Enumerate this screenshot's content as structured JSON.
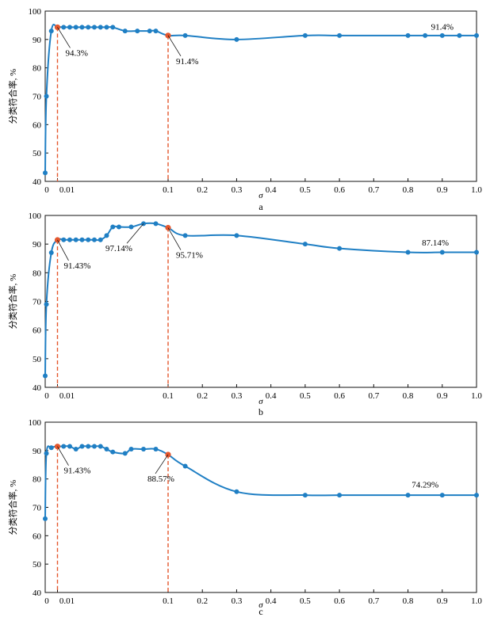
{
  "colors": {
    "line": "#1f7fc4",
    "marker": "#1f7fc4",
    "highlight": "#e4572e",
    "guide": "#e4572e",
    "axis": "#111111"
  },
  "chart_data": [
    {
      "type": "line",
      "panel": "a",
      "xlabel": "σ",
      "ylabel": "分类符合率, %",
      "ylim": [
        40,
        100
      ],
      "xlim": [
        0,
        1.0
      ],
      "y_ticks": [
        "40",
        "50",
        "60",
        "70",
        "80",
        "90",
        "100"
      ],
      "x_ticks": [
        "0",
        "0.01",
        "0.1",
        "0.2",
        "0.3",
        "0.4",
        "0.5",
        "0.6",
        "0.7",
        "0.8",
        "0.9",
        "1.0"
      ],
      "series": [
        {
          "name": "a",
          "x": [
            0,
            0.001,
            0.005,
            0.01,
            0.015,
            0.02,
            0.025,
            0.03,
            0.035,
            0.04,
            0.045,
            0.05,
            0.055,
            0.065,
            0.075,
            0.085,
            0.09,
            0.1,
            0.15,
            0.3,
            0.5,
            0.6,
            0.8,
            0.85,
            0.9,
            0.95,
            1.0
          ],
          "values": [
            43,
            70,
            93,
            94.3,
            94.3,
            94.3,
            94.3,
            94.3,
            94.3,
            94.3,
            94.3,
            94.3,
            94.3,
            93,
            93,
            93,
            93,
            91.4,
            91.4,
            90,
            91.4,
            91.4,
            91.4,
            91.4,
            91.4,
            91.4,
            91.4
          ]
        }
      ],
      "highlights": [
        {
          "x": 0.01,
          "y": 94.3,
          "label": "94.3%"
        },
        {
          "x": 0.1,
          "y": 91.4,
          "label": "91.4%"
        }
      ],
      "annotations": [
        {
          "text": "91.4%",
          "x": 0.9,
          "y": 93.5
        }
      ]
    },
    {
      "type": "line",
      "panel": "b",
      "xlabel": "σ",
      "ylabel": "分类符合率, %",
      "ylim": [
        40,
        100
      ],
      "xlim": [
        0,
        1.0
      ],
      "y_ticks": [
        "40",
        "50",
        "60",
        "70",
        "80",
        "90",
        "100"
      ],
      "x_ticks": [
        "0",
        "0.01",
        "0.1",
        "0.2",
        "0.3",
        "0.4",
        "0.5",
        "0.6",
        "0.7",
        "0.8",
        "0.9",
        "1.0"
      ],
      "series": [
        {
          "name": "b",
          "x": [
            0,
            0.001,
            0.005,
            0.01,
            0.015,
            0.02,
            0.025,
            0.03,
            0.035,
            0.04,
            0.045,
            0.05,
            0.055,
            0.06,
            0.07,
            0.08,
            0.09,
            0.1,
            0.15,
            0.3,
            0.5,
            0.6,
            0.8,
            0.9,
            1.0
          ],
          "values": [
            44,
            69,
            87,
            91.43,
            91.5,
            91.5,
            91.5,
            91.5,
            91.5,
            91.5,
            91.5,
            93,
            96,
            96,
            96,
            97.14,
            97.14,
            95.71,
            93,
            93,
            90,
            88.5,
            87.14,
            87.14,
            87.14
          ]
        }
      ],
      "highlights": [
        {
          "x": 0.01,
          "y": 91.43,
          "label": "91.43%"
        },
        {
          "x": 0.1,
          "y": 95.71,
          "label": "95.71%"
        }
      ],
      "annotations": [
        {
          "text": "97.14%",
          "x": 0.06,
          "y": 87.5
        },
        {
          "text": "87.14%",
          "x": 0.88,
          "y": 89.5
        }
      ]
    },
    {
      "type": "line",
      "panel": "c",
      "xlabel": "σ",
      "ylabel": "分类符合率, %",
      "ylim": [
        40,
        100
      ],
      "xlim": [
        0,
        1.0
      ],
      "y_ticks": [
        "40",
        "50",
        "60",
        "70",
        "80",
        "90",
        "100"
      ],
      "x_ticks": [
        "0",
        "0.01",
        "0.1",
        "0.2",
        "0.3",
        "0.4",
        "0.5",
        "0.6",
        "0.7",
        "0.8",
        "0.9",
        "1.0"
      ],
      "series": [
        {
          "name": "c",
          "x": [
            0,
            0.001,
            0.005,
            0.01,
            0.015,
            0.02,
            0.025,
            0.03,
            0.035,
            0.04,
            0.045,
            0.05,
            0.055,
            0.065,
            0.07,
            0.08,
            0.09,
            0.1,
            0.15,
            0.3,
            0.5,
            0.6,
            0.8,
            0.9,
            1.0
          ],
          "values": [
            66,
            89,
            91,
            91.43,
            91.5,
            91.5,
            90.5,
            91.5,
            91.5,
            91.5,
            91.5,
            90.5,
            89.5,
            89,
            90.5,
            90.5,
            90.5,
            88.57,
            84.5,
            75.5,
            74.29,
            74.29,
            74.29,
            74.29,
            74.29
          ]
        }
      ],
      "highlights": [
        {
          "x": 0.01,
          "y": 91.43,
          "label": "91.43%"
        },
        {
          "x": 0.1,
          "y": 88.57,
          "label": "88.57%"
        }
      ],
      "annotations": [
        {
          "text": "74.29%",
          "x": 0.85,
          "y": 77
        }
      ]
    }
  ]
}
